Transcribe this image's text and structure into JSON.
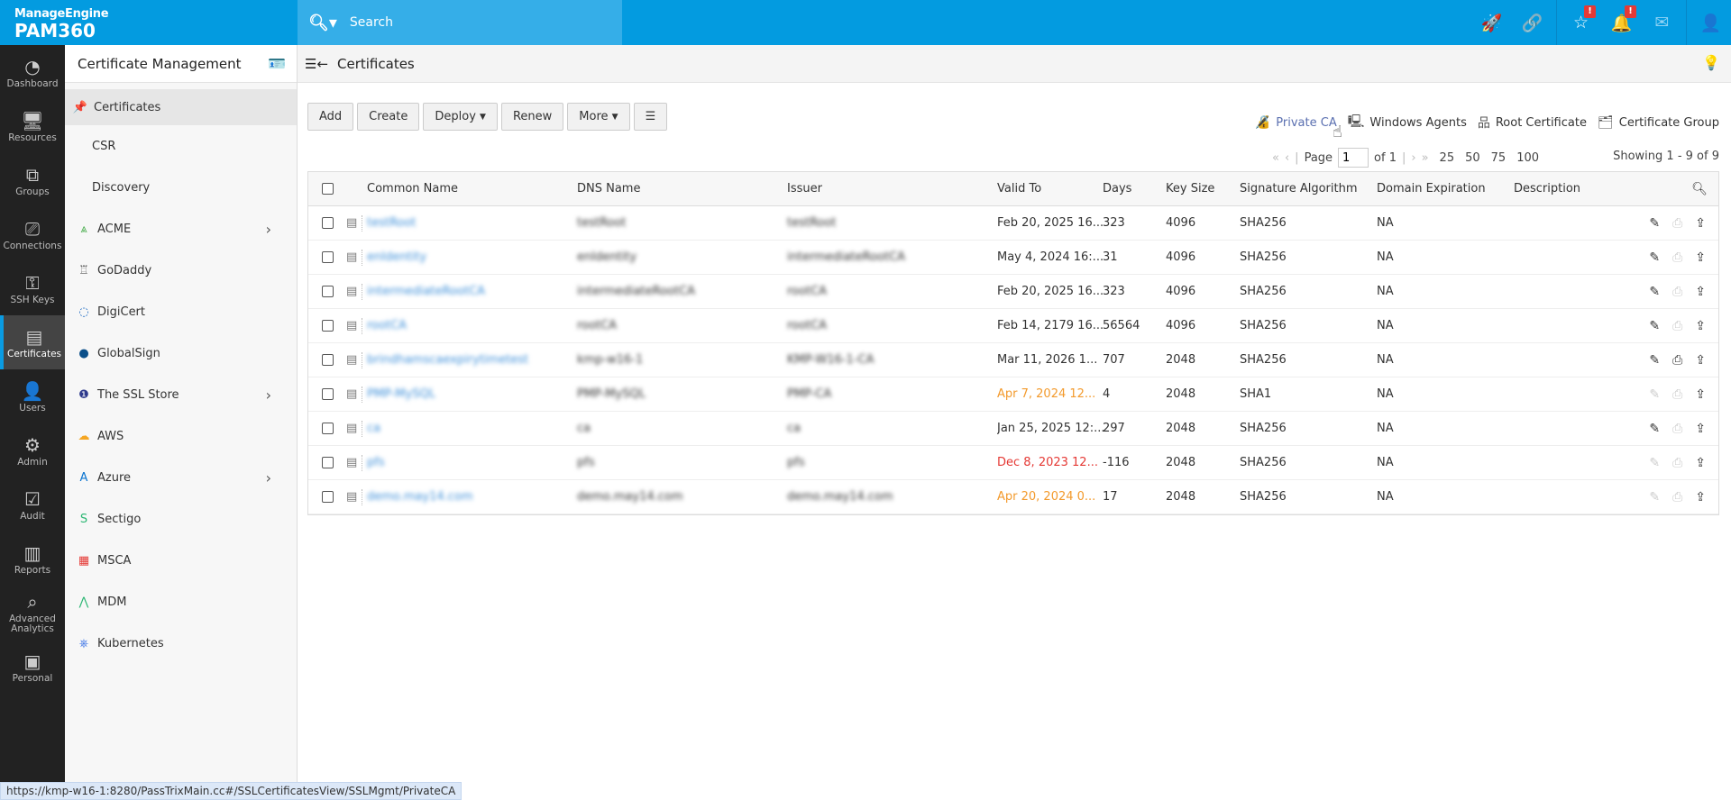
{
  "app": {
    "brand": "ManageEngine",
    "product": "PAM360",
    "search_placeholder": "Search"
  },
  "colors": {
    "header": "#039be0",
    "accent": "#0a9be2",
    "warning": "#f39a2c",
    "danger": "#e53935",
    "link": "#3d8fd9"
  },
  "top_icons": [
    {
      "name": "rocket-icon",
      "glyph": "🚀"
    },
    {
      "name": "link-icon",
      "glyph": "🔗"
    },
    {
      "name": "user-star-icon",
      "glyph": "☆",
      "badge": "!"
    },
    {
      "name": "bell-icon",
      "glyph": "🔔",
      "badge": "!"
    },
    {
      "name": "mail-icon",
      "glyph": "✉"
    },
    {
      "name": "user-menu-icon",
      "glyph": "👤"
    }
  ],
  "left_nav": [
    {
      "label": "Dashboard",
      "icon": "◔"
    },
    {
      "label": "Resources",
      "icon": "🖥"
    },
    {
      "label": "Groups",
      "icon": "⧉"
    },
    {
      "label": "Connections",
      "icon": "⎚"
    },
    {
      "label": "SSH Keys",
      "icon": "⚿"
    },
    {
      "label": "Certificates",
      "icon": "▤",
      "active": true
    },
    {
      "label": "Users",
      "icon": "👤"
    },
    {
      "label": "Admin",
      "icon": "⚙"
    },
    {
      "label": "Audit",
      "icon": "☑"
    },
    {
      "label": "Reports",
      "icon": "▥"
    },
    {
      "label": "Advanced Analytics",
      "icon": "⌕"
    },
    {
      "label": "Personal",
      "icon": "▣"
    }
  ],
  "side_nav": {
    "title": "Certificate Management",
    "items": [
      {
        "label": "Certificates",
        "icon": "📌",
        "color": "#1e88e5",
        "active": true
      },
      {
        "label": "CSR"
      },
      {
        "label": "Discovery"
      },
      {
        "label": "ACME",
        "icon": "⩓",
        "color": "#4caf50",
        "chevron": true
      },
      {
        "label": "GoDaddy",
        "icon": "♖",
        "color": "#555"
      },
      {
        "label": "DigiCert",
        "icon": "◌",
        "color": "#1565c0"
      },
      {
        "label": "GlobalSign",
        "icon": "●",
        "color": "#0b4f8a"
      },
      {
        "label": "The SSL Store",
        "icon": "❶",
        "color": "#2e3a8c",
        "chevron": true
      },
      {
        "label": "AWS",
        "icon": "☁",
        "color": "#f5a623"
      },
      {
        "label": "Azure",
        "icon": "A",
        "color": "#0a74d0",
        "chevron": true
      },
      {
        "label": "Sectigo",
        "icon": "S",
        "color": "#2bb673"
      },
      {
        "label": "MSCA",
        "icon": "▦",
        "color": "#e53935"
      },
      {
        "label": "MDM",
        "icon": "⋀",
        "color": "#2bb673"
      },
      {
        "label": "Kubernetes",
        "icon": "⎈",
        "color": "#326ce5"
      }
    ]
  },
  "breadcrumb": {
    "title": "Certificates"
  },
  "toolbar": {
    "add": "Add",
    "create": "Create",
    "deploy": "Deploy",
    "renew": "Renew",
    "more": "More"
  },
  "links": [
    {
      "label": "Private CA",
      "icon": "🔏",
      "hover": true
    },
    {
      "label": "Windows Agents",
      "icon": "🖳"
    },
    {
      "label": "Root Certificate",
      "icon": "品"
    },
    {
      "label": "Certificate Group",
      "icon": "🗂"
    }
  ],
  "pager": {
    "page_label": "Page",
    "page": "1",
    "of": "of 1",
    "sizes": [
      "25",
      "50",
      "75",
      "100"
    ],
    "showing": "Showing 1 - 9 of 9"
  },
  "table": {
    "columns": [
      "Common Name",
      "DNS Name",
      "Issuer",
      "Valid To",
      "Days",
      "Key Size",
      "Signature Algorithm",
      "Domain Expiration",
      "Description"
    ],
    "rows": [
      {
        "cn": "testRoot",
        "dns": "testRoot",
        "issuer": "testRoot",
        "valid": "Feb 20, 2025 16...",
        "days": "323",
        "key": "4096",
        "alg": "SHA256",
        "dom": "NA",
        "status": "normal",
        "actions": [
          true,
          false,
          true
        ]
      },
      {
        "cn": "enIdentity",
        "dns": "enIdentity",
        "issuer": "intermediateRootCA",
        "valid": "May 4, 2024 16:...",
        "days": "31",
        "key": "4096",
        "alg": "SHA256",
        "dom": "NA",
        "status": "normal",
        "actions": [
          true,
          false,
          true
        ]
      },
      {
        "cn": "intermediateRootCA",
        "dns": "intermediateRootCA",
        "issuer": "rootCA",
        "valid": "Feb 20, 2025 16...",
        "days": "323",
        "key": "4096",
        "alg": "SHA256",
        "dom": "NA",
        "status": "normal",
        "actions": [
          true,
          false,
          true
        ]
      },
      {
        "cn": "rootCA",
        "dns": "rootCA",
        "issuer": "rootCA",
        "valid": "Feb 14, 2179 16...",
        "days": "56564",
        "key": "4096",
        "alg": "SHA256",
        "dom": "NA",
        "status": "normal",
        "actions": [
          true,
          false,
          true
        ]
      },
      {
        "cn": "brindhamscaexpirytimetest",
        "dns": "kmp-w16-1",
        "issuer": "KMP-W16-1-CA",
        "valid": "Mar 11, 2026 1...",
        "days": "707",
        "key": "2048",
        "alg": "SHA256",
        "dom": "NA",
        "status": "normal",
        "actions": [
          true,
          true,
          true
        ]
      },
      {
        "cn": "PMP-MySQL",
        "dns": "PMP-MySQL",
        "issuer": "PMP-CA",
        "valid": "Apr 7, 2024 12...",
        "days": "4",
        "key": "2048",
        "alg": "SHA1",
        "dom": "NA",
        "status": "warning",
        "actions": [
          false,
          false,
          true
        ]
      },
      {
        "cn": "ca",
        "dns": "ca",
        "issuer": "ca",
        "valid": "Jan 25, 2025 12:...",
        "days": "297",
        "key": "2048",
        "alg": "SHA256",
        "dom": "NA",
        "status": "normal",
        "actions": [
          true,
          false,
          true
        ]
      },
      {
        "cn": "pfs",
        "dns": "pfs",
        "issuer": "pfs",
        "valid": "Dec 8, 2023 12...",
        "days": "-116",
        "key": "2048",
        "alg": "SHA256",
        "dom": "NA",
        "status": "expired",
        "actions": [
          false,
          false,
          true
        ]
      },
      {
        "cn": "demo.may14.com",
        "dns": "demo.may14.com",
        "issuer": "demo.may14.com",
        "valid": "Apr 20, 2024 0...",
        "days": "17",
        "key": "2048",
        "alg": "SHA256",
        "dom": "NA",
        "status": "warning",
        "actions": [
          false,
          false,
          true
        ]
      }
    ]
  },
  "status_bar": "https://kmp-w16-1:8280/PassTrixMain.cc#/SSLCertificatesView/SSLMgmt/PrivateCA"
}
